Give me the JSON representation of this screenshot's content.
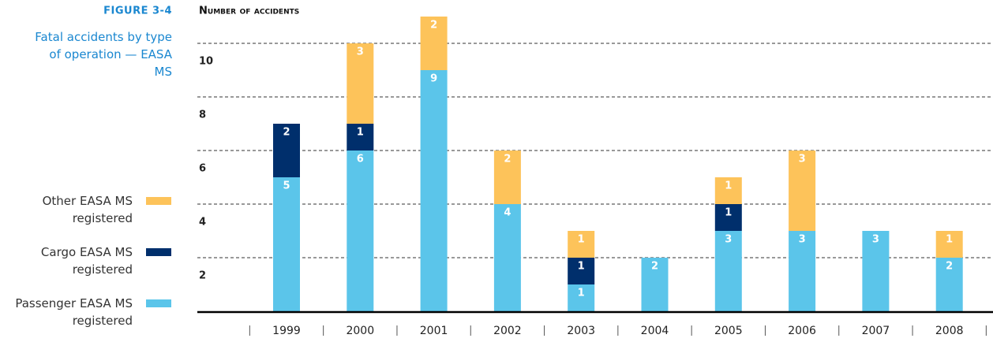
{
  "chart_data": {
    "type": "stacked-bar",
    "figure_label": "FIGURE 3-4",
    "title": "Fatal accidents by type of operation — EASA MS",
    "y_label": "Number of accidents",
    "categories": [
      "1999",
      "2000",
      "2001",
      "2002",
      "2003",
      "2004",
      "2005",
      "2006",
      "2007",
      "2008"
    ],
    "series": [
      {
        "name": "Passenger EASA MS registered",
        "color": "#5bc5ea",
        "values": [
          5,
          6,
          9,
          4,
          1,
          2,
          3,
          3,
          3,
          2
        ]
      },
      {
        "name": "Cargo EASA MS registered",
        "color": "#002f6c",
        "values": [
          2,
          1,
          0,
          0,
          1,
          0,
          1,
          0,
          0,
          0
        ]
      },
      {
        "name": "Other EASA MS registered",
        "color": "#fdc35a",
        "values": [
          0,
          3,
          2,
          2,
          1,
          0,
          1,
          3,
          0,
          1
        ]
      }
    ],
    "ylim": [
      0,
      11
    ],
    "yticks": [
      2,
      4,
      6,
      8,
      10
    ],
    "grid": true
  }
}
